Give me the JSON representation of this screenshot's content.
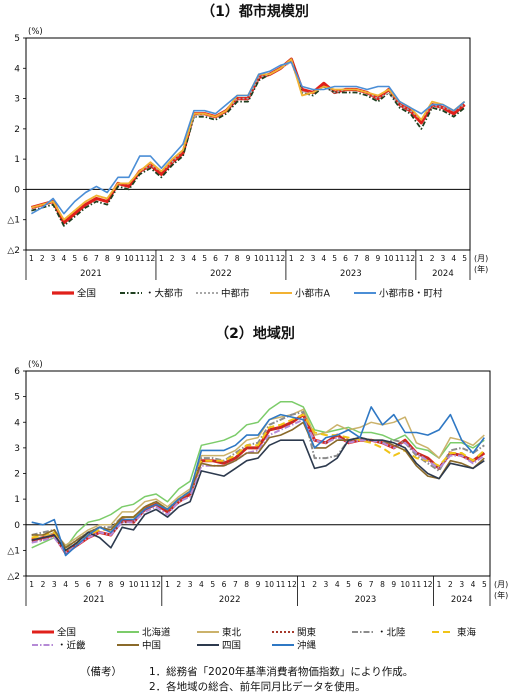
{
  "notes": {
    "prefix": "（備考）",
    "line1": "1．総務省「2020年基準消費者物価指数」により作成。",
    "line2": "2．各地域の総合、前年同月比データを使用。"
  },
  "chart_data": [
    {
      "type": "line",
      "title": "（1）都市規模別",
      "ylabel": "(%)",
      "xlabel": "(月)",
      "xlabel2": "(年)",
      "ylim": [
        -2,
        5
      ],
      "yticks": [
        {
          "value": 5,
          "label": "5"
        },
        {
          "value": 4,
          "label": "4"
        },
        {
          "value": 3,
          "label": "3"
        },
        {
          "value": 2,
          "label": "2"
        },
        {
          "value": 1,
          "label": "1"
        },
        {
          "value": 0,
          "label": "0"
        },
        {
          "value": -1,
          "label": "△1"
        },
        {
          "value": -2,
          "label": "△2"
        }
      ],
      "x": [
        "2021-01",
        "2021-02",
        "2021-03",
        "2021-04",
        "2021-05",
        "2021-06",
        "2021-07",
        "2021-08",
        "2021-09",
        "2021-10",
        "2021-11",
        "2021-12",
        "2022-01",
        "2022-02",
        "2022-03",
        "2022-04",
        "2022-05",
        "2022-06",
        "2022-07",
        "2022-08",
        "2022-09",
        "2022-10",
        "2022-11",
        "2022-12",
        "2023-01",
        "2023-02",
        "2023-03",
        "2023-04",
        "2023-05",
        "2023-06",
        "2023-07",
        "2023-08",
        "2023-09",
        "2023-10",
        "2023-11",
        "2023-12",
        "2024-01",
        "2024-02",
        "2024-03",
        "2024-04",
        "2024-05"
      ],
      "month_labels": [
        "1",
        "2",
        "3",
        "4",
        "5",
        "6",
        "7",
        "8",
        "9",
        "10",
        "11",
        "12",
        "1",
        "2",
        "3",
        "4",
        "5",
        "6",
        "7",
        "8",
        "9",
        "10",
        "11",
        "12",
        "1",
        "2",
        "3",
        "4",
        "5",
        "6",
        "7",
        "8",
        "9",
        "10",
        "11",
        "12",
        "1",
        "2",
        "3",
        "4",
        "5"
      ],
      "year_groups": [
        {
          "label": "2021",
          "count": 12
        },
        {
          "label": "2022",
          "count": 12
        },
        {
          "label": "2023",
          "count": 12
        },
        {
          "label": "2024",
          "count": 5
        }
      ],
      "legend_position": "bottom",
      "series": [
        {
          "name": "全国",
          "color": "#e0201b",
          "dash": "solid",
          "width": 3.2,
          "values": [
            -0.6,
            -0.5,
            -0.4,
            -1.1,
            -0.8,
            -0.5,
            -0.3,
            -0.4,
            0.2,
            0.1,
            0.6,
            0.8,
            0.5,
            0.9,
            1.2,
            2.5,
            2.5,
            2.4,
            2.6,
            3.0,
            3.0,
            3.7,
            3.8,
            4.0,
            4.3,
            3.3,
            3.2,
            3.5,
            3.2,
            3.3,
            3.3,
            3.2,
            3.0,
            3.3,
            2.8,
            2.6,
            2.2,
            2.8,
            2.7,
            2.5,
            2.8
          ]
        },
        {
          "name": "・大都市",
          "color": "#1f3f1f",
          "dash": "5 2 1.5 2",
          "width": 1.8,
          "values": [
            -0.7,
            -0.6,
            -0.5,
            -1.2,
            -0.9,
            -0.6,
            -0.4,
            -0.5,
            0.1,
            0.0,
            0.5,
            0.7,
            0.4,
            0.8,
            1.1,
            2.4,
            2.4,
            2.3,
            2.5,
            2.9,
            2.9,
            3.6,
            3.8,
            4.0,
            4.3,
            3.2,
            3.1,
            3.4,
            3.2,
            3.2,
            3.2,
            3.1,
            2.9,
            3.2,
            2.7,
            2.5,
            2.0,
            2.7,
            2.6,
            2.4,
            2.7
          ]
        },
        {
          "name": "中都市",
          "color": "#a8a8a8",
          "dash": "2 2",
          "width": 1.6,
          "values": [
            -0.6,
            -0.5,
            -0.4,
            -1.0,
            -0.7,
            -0.4,
            -0.2,
            -0.3,
            0.2,
            0.2,
            0.6,
            0.8,
            0.6,
            0.9,
            1.3,
            2.4,
            2.5,
            2.4,
            2.6,
            3.0,
            3.0,
            3.7,
            3.8,
            4.0,
            4.2,
            3.2,
            3.2,
            3.4,
            3.2,
            3.3,
            3.3,
            3.2,
            3.0,
            3.2,
            2.8,
            2.6,
            2.3,
            2.8,
            2.7,
            2.6,
            2.8
          ]
        },
        {
          "name": "小都市A",
          "color": "#f2b233",
          "dash": "solid",
          "width": 1.8,
          "values": [
            -0.6,
            -0.5,
            -0.4,
            -1.0,
            -0.7,
            -0.4,
            -0.2,
            -0.3,
            0.2,
            0.2,
            0.6,
            0.9,
            0.6,
            1.0,
            1.3,
            2.5,
            2.5,
            2.4,
            2.6,
            3.1,
            3.1,
            3.8,
            3.8,
            4.0,
            4.3,
            3.1,
            3.2,
            3.4,
            3.3,
            3.3,
            3.3,
            3.2,
            3.1,
            3.3,
            2.9,
            2.7,
            2.3,
            2.9,
            2.8,
            2.6,
            2.9
          ]
        },
        {
          "name": "小都市B・町村",
          "color": "#4b8ed6",
          "dash": "solid",
          "width": 1.6,
          "values": [
            -0.8,
            -0.6,
            -0.3,
            -0.8,
            -0.4,
            -0.1,
            0.1,
            -0.1,
            0.4,
            0.4,
            1.1,
            1.1,
            0.7,
            1.1,
            1.5,
            2.6,
            2.6,
            2.5,
            2.8,
            3.1,
            3.1,
            3.8,
            3.9,
            4.1,
            4.2,
            3.4,
            3.3,
            3.3,
            3.4,
            3.4,
            3.4,
            3.3,
            3.4,
            3.4,
            2.9,
            2.7,
            2.5,
            2.8,
            2.8,
            2.6,
            2.9
          ]
        }
      ]
    },
    {
      "type": "line",
      "title": "（2）地域別",
      "ylabel": "(%)",
      "xlabel": "(月)",
      "xlabel2": "(年)",
      "ylim": [
        -2,
        6
      ],
      "yticks": [
        {
          "value": 6,
          "label": "6"
        },
        {
          "value": 5,
          "label": "5"
        },
        {
          "value": 4,
          "label": "4"
        },
        {
          "value": 3,
          "label": "3"
        },
        {
          "value": 2,
          "label": "2"
        },
        {
          "value": 1,
          "label": "1"
        },
        {
          "value": 0,
          "label": "0"
        },
        {
          "value": -1,
          "label": "△1"
        },
        {
          "value": -2,
          "label": "△2"
        }
      ],
      "x": [
        "2021-01",
        "2021-02",
        "2021-03",
        "2021-04",
        "2021-05",
        "2021-06",
        "2021-07",
        "2021-08",
        "2021-09",
        "2021-10",
        "2021-11",
        "2021-12",
        "2022-01",
        "2022-02",
        "2022-03",
        "2022-04",
        "2022-05",
        "2022-06",
        "2022-07",
        "2022-08",
        "2022-09",
        "2022-10",
        "2022-11",
        "2022-12",
        "2023-01",
        "2023-02",
        "2023-03",
        "2023-04",
        "2023-05",
        "2023-06",
        "2023-07",
        "2023-08",
        "2023-09",
        "2023-10",
        "2023-11",
        "2023-12",
        "2024-01",
        "2024-02",
        "2024-03",
        "2024-04",
        "2024-05"
      ],
      "month_labels": [
        "1",
        "2",
        "3",
        "4",
        "5",
        "6",
        "7",
        "8",
        "9",
        "10",
        "11",
        "12",
        "1",
        "2",
        "3",
        "4",
        "5",
        "6",
        "7",
        "8",
        "9",
        "10",
        "11",
        "12",
        "1",
        "2",
        "3",
        "4",
        "5",
        "6",
        "7",
        "8",
        "9",
        "10",
        "11",
        "12",
        "1",
        "2",
        "3",
        "4",
        "5"
      ],
      "year_groups": [
        {
          "label": "2021",
          "count": 12
        },
        {
          "label": "2022",
          "count": 12
        },
        {
          "label": "2023",
          "count": 12
        },
        {
          "label": "2024",
          "count": 5
        }
      ],
      "legend_position": "bottom",
      "series": [
        {
          "name": "全国",
          "color": "#e0201b",
          "dash": "solid",
          "width": 3.0,
          "values": [
            -0.6,
            -0.5,
            -0.4,
            -1.1,
            -0.8,
            -0.5,
            -0.3,
            -0.4,
            0.2,
            0.1,
            0.6,
            0.8,
            0.5,
            0.9,
            1.2,
            2.5,
            2.5,
            2.4,
            2.6,
            3.0,
            3.0,
            3.7,
            3.8,
            4.0,
            4.3,
            3.3,
            3.2,
            3.5,
            3.2,
            3.3,
            3.3,
            3.2,
            3.0,
            3.3,
            2.8,
            2.6,
            2.2,
            2.8,
            2.7,
            2.5,
            2.8
          ]
        },
        {
          "name": "北海道",
          "color": "#7ccc6a",
          "dash": "solid",
          "width": 1.5,
          "values": [
            -0.9,
            -0.7,
            -0.5,
            -0.9,
            -0.3,
            0.1,
            0.2,
            0.4,
            0.7,
            0.8,
            1.1,
            1.2,
            0.9,
            1.4,
            1.7,
            3.1,
            3.2,
            3.3,
            3.5,
            3.9,
            4.0,
            4.5,
            4.8,
            4.8,
            4.6,
            3.7,
            3.6,
            3.7,
            3.8,
            3.6,
            3.6,
            3.5,
            3.3,
            3.5,
            3.0,
            2.9,
            2.6,
            3.2,
            3.2,
            3.0,
            3.3
          ]
        },
        {
          "name": "東北",
          "color": "#cbb26b",
          "dash": "solid",
          "width": 1.5,
          "values": [
            -0.5,
            -0.5,
            -0.3,
            -0.8,
            -0.5,
            -0.2,
            0.0,
            0.0,
            0.5,
            0.5,
            0.9,
            1.0,
            0.7,
            1.1,
            1.4,
            2.7,
            2.7,
            2.7,
            2.9,
            3.3,
            3.4,
            4.1,
            4.2,
            4.3,
            4.5,
            3.5,
            3.6,
            3.9,
            3.7,
            3.8,
            4.0,
            3.9,
            4.0,
            4.2,
            3.2,
            3.0,
            2.6,
            3.4,
            3.3,
            3.1,
            3.5
          ]
        },
        {
          "name": "関東",
          "color": "#a7392c",
          "dash": "2 2",
          "width": 2.0,
          "values": [
            -0.6,
            -0.6,
            -0.4,
            -1.1,
            -0.8,
            -0.5,
            -0.3,
            -0.4,
            0.1,
            0.1,
            0.6,
            0.8,
            0.5,
            0.9,
            1.2,
            2.5,
            2.5,
            2.4,
            2.6,
            3.0,
            3.0,
            3.7,
            3.8,
            4.0,
            4.3,
            3.3,
            3.2,
            3.5,
            3.3,
            3.3,
            3.3,
            3.2,
            3.0,
            3.3,
            2.8,
            2.6,
            2.2,
            2.8,
            2.7,
            2.5,
            2.8
          ]
        },
        {
          "name": "・北陸",
          "color": "#8c8c8c",
          "dash": "6 2 1.5 2",
          "width": 2.0,
          "values": [
            -0.4,
            -0.3,
            -0.2,
            -0.9,
            -0.6,
            -0.3,
            -0.1,
            -0.1,
            0.3,
            0.3,
            0.7,
            0.9,
            0.6,
            1.0,
            1.3,
            2.6,
            2.6,
            2.5,
            2.8,
            3.1,
            3.2,
            3.9,
            4.1,
            4.3,
            4.4,
            2.6,
            2.6,
            2.7,
            3.3,
            3.4,
            3.3,
            3.2,
            3.3,
            3.2,
            2.7,
            2.4,
            2.1,
            2.9,
            3.0,
            2.8,
            3.1
          ]
        },
        {
          "name": "東海",
          "color": "#f0c418",
          "dash": "7 4",
          "width": 2.0,
          "values": [
            -0.5,
            -0.4,
            -0.3,
            -1.0,
            -0.7,
            -0.4,
            -0.2,
            -0.2,
            0.3,
            0.3,
            0.7,
            0.9,
            0.6,
            1.0,
            1.3,
            2.5,
            2.5,
            2.5,
            2.7,
            3.1,
            3.1,
            3.8,
            3.9,
            4.1,
            4.3,
            3.6,
            3.5,
            3.5,
            3.4,
            3.3,
            3.2,
            3.0,
            2.7,
            2.9,
            2.6,
            2.5,
            2.3,
            2.8,
            2.8,
            2.5,
            2.9
          ]
        },
        {
          "name": "・近畿",
          "color": "#b58ad6",
          "dash": "6 2 1.5 2",
          "width": 2.0,
          "values": [
            -0.7,
            -0.6,
            -0.5,
            -1.1,
            -0.8,
            -0.5,
            -0.3,
            -0.4,
            0.1,
            0.1,
            0.5,
            0.7,
            0.4,
            0.9,
            1.1,
            2.3,
            2.3,
            2.3,
            2.5,
            2.8,
            2.9,
            3.5,
            3.7,
            3.9,
            4.1,
            3.3,
            3.2,
            3.4,
            3.2,
            3.3,
            3.3,
            3.2,
            3.0,
            3.2,
            2.8,
            2.5,
            2.2,
            2.7,
            2.7,
            2.4,
            2.7
          ]
        },
        {
          "name": "中国",
          "color": "#8a6a2a",
          "dash": "solid",
          "width": 1.6,
          "values": [
            -0.4,
            -0.4,
            -0.2,
            -0.9,
            -0.6,
            -0.3,
            -0.1,
            -0.2,
            0.3,
            0.3,
            0.7,
            0.9,
            0.6,
            1.0,
            1.3,
            2.4,
            2.3,
            2.3,
            2.5,
            2.8,
            2.8,
            3.4,
            3.5,
            3.7,
            4.0,
            3.0,
            3.0,
            3.3,
            3.3,
            3.4,
            3.3,
            3.3,
            3.1,
            2.9,
            2.3,
            1.9,
            1.8,
            2.5,
            2.4,
            2.2,
            2.6
          ]
        },
        {
          "name": "四国",
          "color": "#2d3a4e",
          "dash": "solid",
          "width": 1.6,
          "values": [
            -0.6,
            -0.5,
            -0.4,
            -1.0,
            -0.7,
            -0.3,
            -0.5,
            -0.9,
            -0.1,
            -0.2,
            0.4,
            0.6,
            0.3,
            0.7,
            0.9,
            2.1,
            2.0,
            1.9,
            2.2,
            2.5,
            2.6,
            3.1,
            3.3,
            3.3,
            3.3,
            2.2,
            2.3,
            2.6,
            3.3,
            3.4,
            3.3,
            3.3,
            3.2,
            3.0,
            2.4,
            2.0,
            1.8,
            2.4,
            2.3,
            2.2,
            2.5
          ]
        },
        {
          "name": "沖縄",
          "color": "#2f78c4",
          "dash": "solid",
          "width": 1.6,
          "values": [
            0.1,
            0.0,
            0.2,
            -1.2,
            -0.8,
            -0.4,
            -0.1,
            -0.3,
            0.2,
            0.2,
            0.6,
            0.8,
            0.6,
            1.0,
            1.3,
            2.9,
            2.9,
            2.9,
            3.1,
            3.5,
            3.5,
            4.1,
            4.3,
            4.2,
            4.1,
            3.0,
            3.4,
            3.5,
            3.7,
            3.4,
            4.6,
            3.9,
            4.3,
            3.6,
            3.6,
            3.5,
            3.7,
            4.3,
            3.3,
            2.8,
            3.4
          ]
        }
      ]
    }
  ]
}
